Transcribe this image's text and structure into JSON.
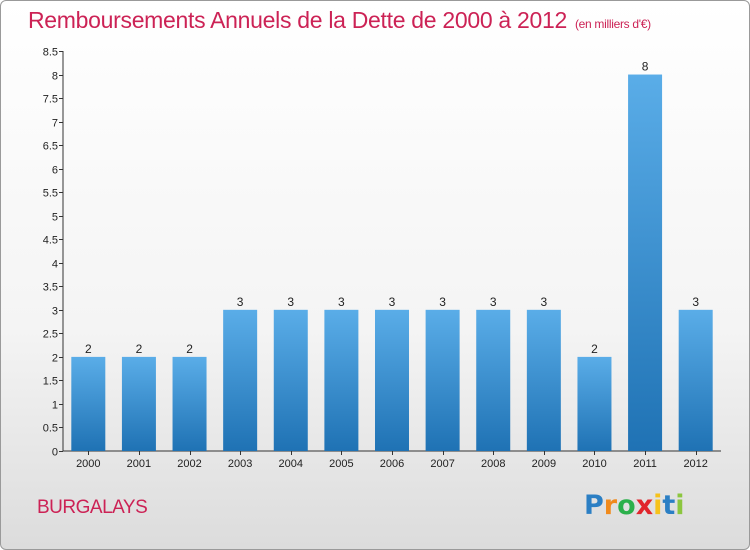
{
  "header": {
    "title": "Remboursements Annuels de la Dette de 2000 à 2012",
    "unit": "(en milliers d'€)"
  },
  "footer": {
    "commune": "BURGALAYS",
    "logo_letters": [
      {
        "ch": "P",
        "color": "#2b7fc4"
      },
      {
        "ch": "r",
        "color": "#f08a1c"
      },
      {
        "ch": "o",
        "color": "#2bb04b"
      },
      {
        "ch": "x",
        "color": "#e1252c"
      },
      {
        "ch": "i",
        "color": "#f6c21b"
      },
      {
        "ch": "t",
        "color": "#2b7fc4"
      },
      {
        "ch": "i",
        "color": "#8cc63f"
      }
    ]
  },
  "colors": {
    "accent": "#cc2255",
    "bar_light": "#5aade8",
    "bar_dark": "#1f72b4"
  },
  "chart_data": {
    "type": "bar",
    "categories": [
      "2000",
      "2001",
      "2002",
      "2003",
      "2004",
      "2005",
      "2006",
      "2007",
      "2008",
      "2009",
      "2010",
      "2011",
      "2012"
    ],
    "values": [
      2,
      2,
      2,
      3,
      3,
      3,
      3,
      3,
      3,
      3,
      2,
      8,
      3
    ],
    "data_labels": [
      "2",
      "2",
      "2",
      "3",
      "3",
      "3",
      "3",
      "3",
      "3",
      "3",
      "2",
      "8",
      "3"
    ],
    "ylim": [
      0,
      8.5
    ],
    "yticks": [
      0,
      0.5,
      1,
      1.5,
      2,
      2.5,
      3,
      3.5,
      4,
      4.5,
      5,
      5.5,
      6,
      6.5,
      7,
      7.5,
      8,
      8.5
    ],
    "ytick_labels": [
      "0",
      "0.5",
      "1",
      "1.5",
      "2",
      "2.5",
      "3",
      "3.5",
      "4",
      "4.5",
      "5",
      "5.5",
      "6",
      "6.5",
      "7",
      "7.5",
      "8",
      "8.5"
    ],
    "xlabel": "",
    "ylabel": "",
    "grid": false,
    "legend": "none"
  }
}
